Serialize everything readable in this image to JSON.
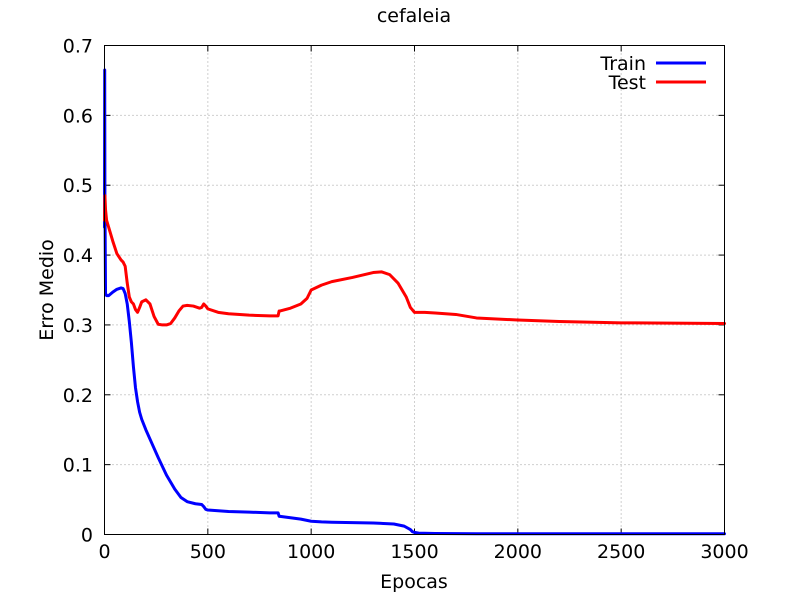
{
  "chart_data": {
    "type": "line",
    "title": "cefaleia",
    "xlabel": "Epocas",
    "ylabel": "Erro Medio",
    "xlim": [
      0,
      3000
    ],
    "ylim": [
      0,
      0.7
    ],
    "xticks": [
      0,
      500,
      1000,
      1500,
      2000,
      2500,
      3000
    ],
    "xtick_labels": [
      "0",
      "500",
      "1000",
      "1500",
      "2000",
      "2500",
      "3000"
    ],
    "yticks": [
      0,
      0.1,
      0.2,
      0.3,
      0.4,
      0.5,
      0.6,
      0.7
    ],
    "ytick_labels": [
      "0",
      "0.1",
      "0.2",
      "0.3",
      "0.4",
      "0.5",
      "0.6",
      "0.7"
    ],
    "grid": true,
    "legend_position": "top-right",
    "series": [
      {
        "name": "Train",
        "color": "#0000ff",
        "x": [
          0,
          1,
          2,
          5,
          10,
          20,
          40,
          60,
          80,
          90,
          100,
          110,
          120,
          130,
          140,
          150,
          160,
          170,
          180,
          200,
          230,
          260,
          300,
          340,
          370,
          400,
          440,
          470,
          480,
          490,
          500,
          550,
          600,
          700,
          800,
          840,
          845,
          850,
          900,
          950,
          1000,
          1050,
          1100,
          1200,
          1300,
          1400,
          1450,
          1480,
          1490,
          1500,
          1520,
          1600,
          1800,
          2000,
          2500,
          3000
        ],
        "y": [
          0.44,
          0.665,
          0.48,
          0.345,
          0.342,
          0.342,
          0.347,
          0.351,
          0.353,
          0.352,
          0.345,
          0.33,
          0.305,
          0.275,
          0.24,
          0.21,
          0.19,
          0.175,
          0.165,
          0.15,
          0.13,
          0.11,
          0.085,
          0.065,
          0.053,
          0.047,
          0.044,
          0.043,
          0.04,
          0.036,
          0.035,
          0.034,
          0.033,
          0.032,
          0.031,
          0.031,
          0.026,
          0.026,
          0.024,
          0.022,
          0.019,
          0.018,
          0.0175,
          0.017,
          0.0165,
          0.015,
          0.012,
          0.007,
          0.004,
          0.003,
          0.002,
          0.0015,
          0.001,
          0.001,
          0.001,
          0.001
        ]
      },
      {
        "name": "Test",
        "color": "#ff0000",
        "x": [
          0,
          2,
          5,
          10,
          20,
          40,
          60,
          80,
          90,
          100,
          110,
          120,
          130,
          140,
          150,
          160,
          170,
          180,
          200,
          220,
          240,
          260,
          280,
          300,
          320,
          340,
          360,
          380,
          400,
          430,
          460,
          470,
          480,
          490,
          500,
          550,
          600,
          700,
          800,
          840,
          845,
          850,
          900,
          950,
          980,
          1000,
          1050,
          1100,
          1200,
          1300,
          1340,
          1380,
          1420,
          1460,
          1480,
          1500,
          1550,
          1600,
          1700,
          1800,
          2000,
          2200,
          2500,
          3000
        ],
        "y": [
          0.45,
          0.485,
          0.465,
          0.45,
          0.44,
          0.42,
          0.402,
          0.393,
          0.39,
          0.384,
          0.36,
          0.34,
          0.333,
          0.33,
          0.322,
          0.318,
          0.325,
          0.333,
          0.336,
          0.33,
          0.312,
          0.301,
          0.3,
          0.3,
          0.302,
          0.31,
          0.32,
          0.327,
          0.328,
          0.327,
          0.324,
          0.325,
          0.33,
          0.327,
          0.323,
          0.318,
          0.316,
          0.314,
          0.313,
          0.313,
          0.32,
          0.32,
          0.324,
          0.33,
          0.338,
          0.35,
          0.357,
          0.362,
          0.368,
          0.375,
          0.376,
          0.372,
          0.36,
          0.34,
          0.325,
          0.318,
          0.318,
          0.317,
          0.315,
          0.31,
          0.307,
          0.305,
          0.303,
          0.302
        ]
      }
    ]
  }
}
